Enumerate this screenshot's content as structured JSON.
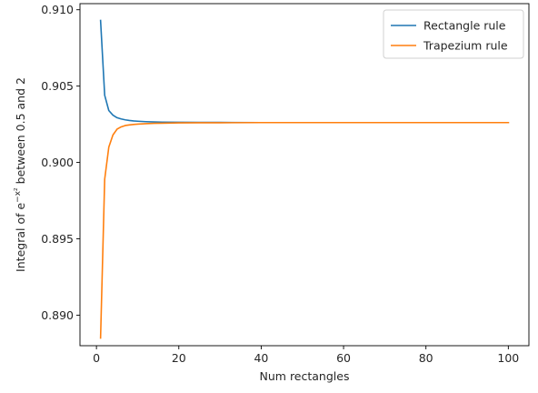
{
  "chart_data": {
    "type": "line",
    "title": "",
    "xlabel": "Num rectangles",
    "ylabel_parts": {
      "before": "Integral of ",
      "base": "e",
      "superscript": "−x²",
      "after": " between 0.5 and 2"
    },
    "xlim": [
      -4,
      105
    ],
    "ylim": [
      0.888,
      0.9104
    ],
    "xticks": [
      0,
      20,
      40,
      60,
      80,
      100
    ],
    "yticks": [
      0.89,
      0.895,
      0.9,
      0.905,
      0.91
    ],
    "ytick_labels": [
      "0.890",
      "0.895",
      "0.900",
      "0.905",
      "0.910"
    ],
    "grid": false,
    "legend_position": "top-right",
    "series": [
      {
        "name": "Rectangle rule",
        "color": "#1f77b4",
        "x": [
          1,
          2,
          3,
          4,
          5,
          6,
          7,
          8,
          9,
          10,
          12,
          14,
          16,
          20,
          25,
          30,
          40,
          50,
          60,
          70,
          80,
          90,
          100
        ],
        "y": [
          0.9093,
          0.9044,
          0.9034,
          0.9031,
          0.90293,
          0.90285,
          0.90279,
          0.90275,
          0.90272,
          0.9027,
          0.90267,
          0.90265,
          0.90264,
          0.90263,
          0.90262,
          0.90262,
          0.90261,
          0.90261,
          0.90261,
          0.90261,
          0.90261,
          0.90261,
          0.90261
        ]
      },
      {
        "name": "Trapezium rule",
        "color": "#ff7f0e",
        "x": [
          1,
          2,
          3,
          4,
          5,
          6,
          7,
          8,
          9,
          10,
          12,
          14,
          16,
          20,
          25,
          30,
          40,
          50,
          60,
          70,
          80,
          90,
          100
        ],
        "y": [
          0.8885,
          0.8989,
          0.901,
          0.9018,
          0.90218,
          0.90233,
          0.90242,
          0.90246,
          0.90249,
          0.90251,
          0.90254,
          0.90256,
          0.90257,
          0.90259,
          0.9026,
          0.9026,
          0.90261,
          0.90261,
          0.90261,
          0.90261,
          0.90261,
          0.90261,
          0.90261
        ]
      }
    ]
  }
}
